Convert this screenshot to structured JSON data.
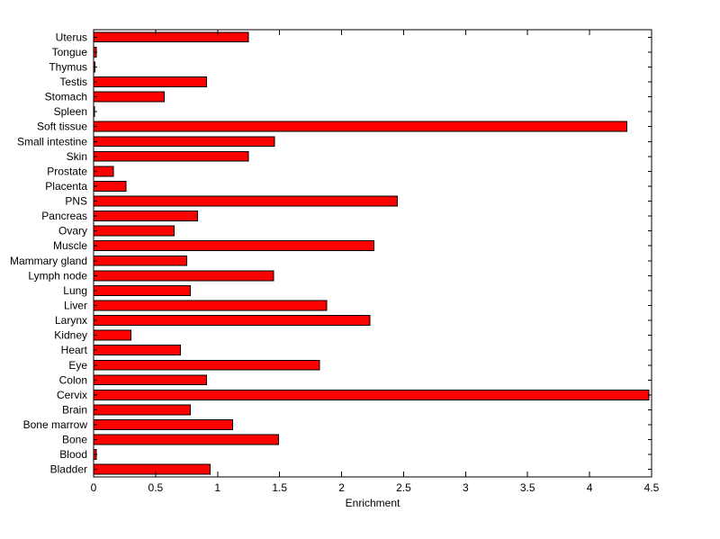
{
  "figure": {
    "background": "#ffffff"
  },
  "chart_data": {
    "type": "bar",
    "orientation": "horizontal",
    "title": "",
    "xlabel": "Enrichment",
    "ylabel": "",
    "xlim": [
      0,
      4.5
    ],
    "xticks": [
      0,
      0.5,
      1,
      1.5,
      2,
      2.5,
      3,
      3.5,
      4,
      4.5
    ],
    "grid": false,
    "legend": null,
    "bar_color": "#ff0000",
    "bar_edge_color": "#000000",
    "categories": [
      "Uterus",
      "Tongue",
      "Thymus",
      "Testis",
      "Stomach",
      "Spleen",
      "Soft tissue",
      "Small intestine",
      "Skin",
      "Prostate",
      "Placenta",
      "PNS",
      "Pancreas",
      "Ovary",
      "Muscle",
      "Mammary gland",
      "Lymph node",
      "Lung",
      "Liver",
      "Larynx",
      "Kidney",
      "Heart",
      "Eye",
      "Colon",
      "Cervix",
      "Brain",
      "Bone marrow",
      "Bone",
      "Blood",
      "Bladder"
    ],
    "values": [
      1.25,
      0.02,
      0.01,
      0.91,
      0.57,
      0.005,
      4.3,
      1.46,
      1.25,
      0.16,
      0.26,
      2.45,
      0.84,
      0.65,
      2.26,
      0.75,
      1.45,
      0.78,
      1.88,
      2.23,
      0.3,
      0.7,
      1.82,
      0.91,
      4.48,
      0.78,
      1.12,
      1.49,
      0.02,
      0.94
    ]
  }
}
